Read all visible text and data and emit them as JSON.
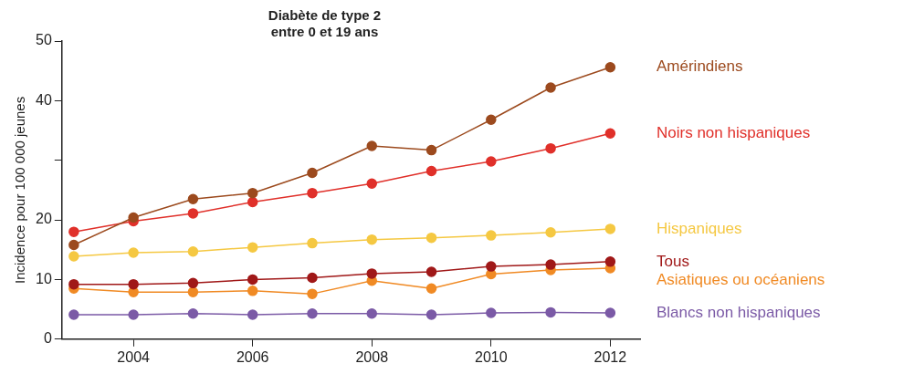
{
  "chart_data": {
    "type": "line",
    "title": "Diabète de type 2\nentre 0 et 19 ans",
    "ylabel": "Incidence pour 100 000 jeunes",
    "x": [
      2003,
      2004,
      2005,
      2006,
      2007,
      2008,
      2009,
      2010,
      2011,
      2012
    ],
    "xlim": [
      2002.8,
      2012.5
    ],
    "xticks": [
      2004,
      2006,
      2008,
      2010,
      2012
    ],
    "ylim": [
      0,
      50
    ],
    "yticks": [
      0,
      10,
      20,
      {
        "value": 30,
        "label": null
      },
      40,
      50
    ],
    "grid": false,
    "legend": false,
    "marker": "circle",
    "line_style": "solid",
    "series": [
      {
        "name": "Amérindiens",
        "color": "#9c4a1e",
        "values": [
          15.8,
          20.4,
          23.5,
          24.5,
          27.9,
          32.4,
          31.7,
          36.8,
          42.2,
          45.6
        ]
      },
      {
        "name": "Noirs non hispaniques",
        "color": "#e0302a",
        "values": [
          18.0,
          19.8,
          21.1,
          23.0,
          24.5,
          26.1,
          28.2,
          29.8,
          32.0,
          34.5
        ]
      },
      {
        "name": "Hispaniques",
        "color": "#f5c842",
        "values": [
          13.9,
          14.5,
          14.7,
          15.4,
          16.1,
          16.7,
          17.0,
          17.4,
          17.9,
          18.5
        ]
      },
      {
        "name": "Tous",
        "color": "#a01818",
        "values": [
          9.2,
          9.2,
          9.4,
          10.0,
          10.3,
          11.0,
          11.3,
          12.2,
          12.5,
          13.0
        ]
      },
      {
        "name": "Asiatiques ou océaniens",
        "color": "#f08a24",
        "values": [
          8.5,
          7.9,
          7.9,
          8.1,
          7.6,
          9.8,
          8.5,
          10.9,
          11.6,
          11.9
        ]
      },
      {
        "name": "Blancs non hispaniques",
        "color": "#7b5aa6",
        "values": [
          4.1,
          4.1,
          4.3,
          4.1,
          4.3,
          4.3,
          4.1,
          4.4,
          4.5,
          4.4
        ]
      }
    ]
  }
}
